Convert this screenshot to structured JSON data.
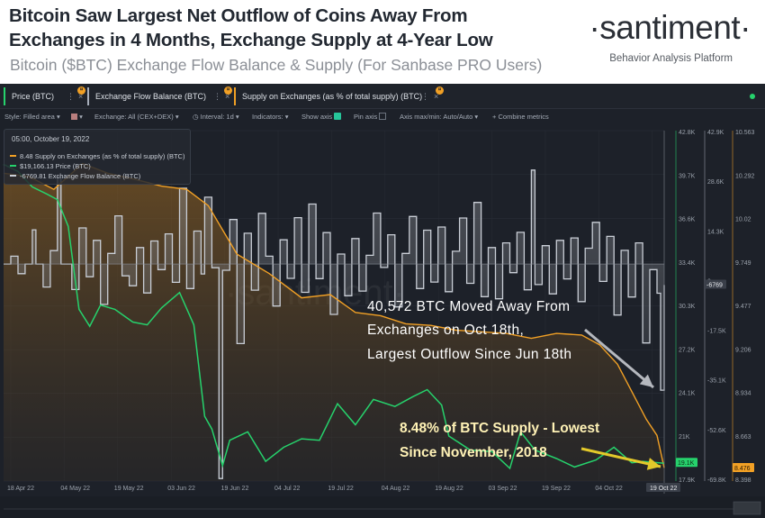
{
  "header": {
    "title_line1": "Bitcoin Saw Largest Net Outflow of Coins Away From",
    "title_line2": "Exchanges in 4 Months, Exchange Supply at 4-Year Low",
    "subtitle": "Bitcoin ($BTC) Exchange Flow Balance & Supply (For Sanbase PRO Users)",
    "logo": "·santiment·",
    "tagline": "Behavior Analysis Platform"
  },
  "tabs": [
    {
      "label": "Price (BTC)",
      "color": "#26d26c",
      "icon": "more-icon",
      "close": "×",
      "badge": "¤"
    },
    {
      "label": "Exchange Flow Balance (BTC)",
      "color": "#a7aebb",
      "icon": "more-icon",
      "close": "×",
      "badge": "¤"
    },
    {
      "label": "Supply on Exchanges (as % of total supply) (BTC)",
      "color": "#f1a025",
      "icon": "more-icon",
      "close": "×",
      "badge": "¤"
    }
  ],
  "toolbar": {
    "style": "Style: Filled area",
    "exchange": "Exchange: All (CEX+DEX)",
    "interval": "Interval: 1d",
    "indicators": "Indicators:",
    "show_axis": "Show axis",
    "pin_axis": "Pin axis",
    "axis_max_min": "Axis max/min: Auto/Auto",
    "combine": "Combine metrics"
  },
  "tooltip": {
    "date": "05:00, October 19, 2022",
    "rows": [
      {
        "value": "8.48",
        "label": "Supply on Exchanges (as % of total supply) (BTC)",
        "color": "#f1a025"
      },
      {
        "value": "$19,166.13",
        "label": "Price (BTC)",
        "color": "#26d26c"
      },
      {
        "value": "-6769.81",
        "label": "Exchange Flow Balance (BTC)",
        "color": "#c9ced6"
      }
    ]
  },
  "annotations": {
    "outflow_l1": "40,572 BTC Moved Away From",
    "outflow_l2": "Exchanges on Oct 18th,",
    "outflow_l3": "Largest Outflow Since Jun 18th",
    "supply_l1": "8.48% of BTC Supply - Lowest",
    "supply_l2": "Since November, 2018"
  },
  "watermark": "·santiment·",
  "chart_data": {
    "type": "line",
    "x_labels": [
      "18 Apr 22",
      "04 May 22",
      "19 May 22",
      "03 Jun 22",
      "19 Jun 22",
      "04 Jul 22",
      "19 Jul 22",
      "04 Aug 22",
      "19 Aug 22",
      "03 Sep 22",
      "19 Sep 22",
      "04 Oct 22",
      "19 Oct 22"
    ],
    "x_start": "2022-04-18",
    "x_end": "2022-10-19",
    "axes": {
      "price": {
        "ticks": [
          "42.8K",
          "39.7K",
          "36.6K",
          "33.4K",
          "30.3K",
          "27.2K",
          "24.1K",
          "21K",
          "17.9K"
        ],
        "min": 17900,
        "max": 42800,
        "current_label": "19.1K",
        "color": "#26d26c"
      },
      "flow": {
        "ticks": [
          "42.9K",
          "28.6K",
          "14.3K",
          "0",
          "-17.5K",
          "-35.1K",
          "-52.6K",
          "-69.8K"
        ],
        "min": -69800,
        "max": 42900,
        "current_label": "-6769",
        "color": "#c9ced6"
      },
      "supply": {
        "ticks": [
          "10.563",
          "10.292",
          "10.02",
          "9.749",
          "9.477",
          "9.206",
          "8.934",
          "8.663",
          "8.398"
        ],
        "min": 8.398,
        "max": 10.563,
        "current_label": "8.476",
        "color": "#f1a025"
      }
    },
    "series": [
      {
        "name": "Price (BTC)",
        "color": "#26d26c",
        "points": [
          [
            "2022-04-18",
            40400
          ],
          [
            "2022-04-22",
            39900
          ],
          [
            "2022-04-26",
            38800
          ],
          [
            "2022-04-30",
            38300
          ],
          [
            "2022-05-03",
            37900
          ],
          [
            "2022-05-06",
            36000
          ],
          [
            "2022-05-09",
            30100
          ],
          [
            "2022-05-12",
            28900
          ],
          [
            "2022-05-15",
            30400
          ],
          [
            "2022-05-19",
            30100
          ],
          [
            "2022-05-24",
            29200
          ],
          [
            "2022-05-28",
            29000
          ],
          [
            "2022-06-01",
            30200
          ],
          [
            "2022-06-06",
            31300
          ],
          [
            "2022-06-10",
            29000
          ],
          [
            "2022-06-13",
            22500
          ],
          [
            "2022-06-15",
            21600
          ],
          [
            "2022-06-18",
            19000
          ],
          [
            "2022-06-20",
            20800
          ],
          [
            "2022-06-25",
            21400
          ],
          [
            "2022-06-30",
            19300
          ],
          [
            "2022-07-05",
            20300
          ],
          [
            "2022-07-10",
            20900
          ],
          [
            "2022-07-15",
            20800
          ],
          [
            "2022-07-20",
            23400
          ],
          [
            "2022-07-25",
            21900
          ],
          [
            "2022-07-30",
            23700
          ],
          [
            "2022-08-05",
            23200
          ],
          [
            "2022-08-10",
            23900
          ],
          [
            "2022-08-14",
            24400
          ],
          [
            "2022-08-18",
            23300
          ],
          [
            "2022-08-20",
            21100
          ],
          [
            "2022-08-26",
            20100
          ],
          [
            "2022-09-01",
            20000
          ],
          [
            "2022-09-06",
            18800
          ],
          [
            "2022-09-09",
            21400
          ],
          [
            "2022-09-13",
            20100
          ],
          [
            "2022-09-19",
            19500
          ],
          [
            "2022-09-24",
            18900
          ],
          [
            "2022-09-30",
            19400
          ],
          [
            "2022-10-05",
            20300
          ],
          [
            "2022-10-10",
            19200
          ],
          [
            "2022-10-13",
            19300
          ],
          [
            "2022-10-19",
            19166
          ]
        ]
      },
      {
        "name": "Supply on Exchanges (as % of total supply) (BTC)",
        "color": "#f1a025",
        "points": [
          [
            "2022-04-18",
            10.3
          ],
          [
            "2022-04-25",
            10.28
          ],
          [
            "2022-05-02",
            10.2
          ],
          [
            "2022-05-10",
            10.36
          ],
          [
            "2022-05-17",
            10.3
          ],
          [
            "2022-05-25",
            10.26
          ],
          [
            "2022-06-01",
            10.22
          ],
          [
            "2022-06-08",
            10.2
          ],
          [
            "2022-06-14",
            10.1
          ],
          [
            "2022-06-18",
            9.95
          ],
          [
            "2022-06-22",
            9.8
          ],
          [
            "2022-07-01",
            9.68
          ],
          [
            "2022-07-10",
            9.53
          ],
          [
            "2022-07-18",
            9.55
          ],
          [
            "2022-07-25",
            9.44
          ],
          [
            "2022-08-01",
            9.42
          ],
          [
            "2022-08-08",
            9.37
          ],
          [
            "2022-08-15",
            9.36
          ],
          [
            "2022-08-22",
            9.33
          ],
          [
            "2022-08-29",
            9.32
          ],
          [
            "2022-09-05",
            9.31
          ],
          [
            "2022-09-12",
            9.28
          ],
          [
            "2022-09-19",
            9.31
          ],
          [
            "2022-09-26",
            9.3
          ],
          [
            "2022-10-01",
            9.24
          ],
          [
            "2022-10-06",
            9.12
          ],
          [
            "2022-10-10",
            8.95
          ],
          [
            "2022-10-14",
            8.78
          ],
          [
            "2022-10-17",
            8.68
          ],
          [
            "2022-10-19",
            8.48
          ]
        ]
      },
      {
        "name": "Exchange Flow Balance (BTC)",
        "color": "#c9ced6",
        "points": [
          [
            "2022-04-18",
            0
          ],
          [
            "2022-04-20",
            2500
          ],
          [
            "2022-04-22",
            -3100
          ],
          [
            "2022-04-24",
            0
          ],
          [
            "2022-04-26",
            11000
          ],
          [
            "2022-04-27",
            0
          ],
          [
            "2022-04-29",
            -7400
          ],
          [
            "2022-05-01",
            4300
          ],
          [
            "2022-05-03",
            28000
          ],
          [
            "2022-05-04",
            0
          ],
          [
            "2022-05-07",
            -8200
          ],
          [
            "2022-05-09",
            11600
          ],
          [
            "2022-05-11",
            -4100
          ],
          [
            "2022-05-13",
            7600
          ],
          [
            "2022-05-15",
            -13000
          ],
          [
            "2022-05-17",
            3400
          ],
          [
            "2022-05-19",
            15500
          ],
          [
            "2022-05-21",
            -3800
          ],
          [
            "2022-05-23",
            -7000
          ],
          [
            "2022-05-25",
            5300
          ],
          [
            "2022-05-27",
            -9300
          ],
          [
            "2022-05-29",
            7400
          ],
          [
            "2022-05-31",
            -1800
          ],
          [
            "2022-06-02",
            9700
          ],
          [
            "2022-06-04",
            -5900
          ],
          [
            "2022-06-06",
            24400
          ],
          [
            "2022-06-08",
            -7900
          ],
          [
            "2022-06-10",
            10600
          ],
          [
            "2022-06-12",
            -3200
          ],
          [
            "2022-06-13",
            21500
          ],
          [
            "2022-06-15",
            -1200
          ],
          [
            "2022-06-17",
            -69000
          ],
          [
            "2022-06-18",
            -2000
          ],
          [
            "2022-06-20",
            14300
          ],
          [
            "2022-06-22",
            -25600
          ],
          [
            "2022-06-24",
            9900
          ],
          [
            "2022-06-26",
            -8400
          ],
          [
            "2022-06-28",
            16300
          ],
          [
            "2022-06-30",
            2500
          ],
          [
            "2022-07-02",
            -13500
          ],
          [
            "2022-07-04",
            7800
          ],
          [
            "2022-07-06",
            -4600
          ],
          [
            "2022-07-08",
            14900
          ],
          [
            "2022-07-10",
            -9100
          ],
          [
            "2022-07-12",
            19300
          ],
          [
            "2022-07-14",
            -4700
          ],
          [
            "2022-07-16",
            10100
          ],
          [
            "2022-07-18",
            -16200
          ],
          [
            "2022-07-20",
            3200
          ],
          [
            "2022-07-22",
            -10200
          ],
          [
            "2022-07-24",
            8200
          ],
          [
            "2022-07-26",
            -8700
          ],
          [
            "2022-07-28",
            2800
          ],
          [
            "2022-07-30",
            16400
          ],
          [
            "2022-08-01",
            -1100
          ],
          [
            "2022-08-03",
            9400
          ],
          [
            "2022-08-05",
            -13800
          ],
          [
            "2022-08-07",
            3400
          ],
          [
            "2022-08-09",
            15300
          ],
          [
            "2022-08-11",
            -7900
          ],
          [
            "2022-08-13",
            10900
          ],
          [
            "2022-08-15",
            -5800
          ],
          [
            "2022-08-17",
            11900
          ],
          [
            "2022-08-19",
            -8900
          ],
          [
            "2022-08-21",
            4100
          ],
          [
            "2022-08-23",
            14800
          ],
          [
            "2022-08-25",
            -6200
          ],
          [
            "2022-08-27",
            19800
          ],
          [
            "2022-08-29",
            -10500
          ],
          [
            "2022-08-31",
            5300
          ],
          [
            "2022-09-02",
            -11200
          ],
          [
            "2022-09-04",
            6800
          ],
          [
            "2022-09-06",
            -2800
          ],
          [
            "2022-09-08",
            10200
          ],
          [
            "2022-09-10",
            -8300
          ],
          [
            "2022-09-12",
            30200
          ],
          [
            "2022-09-13",
            -6600
          ],
          [
            "2022-09-15",
            5900
          ],
          [
            "2022-09-17",
            -9600
          ],
          [
            "2022-09-19",
            7600
          ],
          [
            "2022-09-21",
            -4800
          ],
          [
            "2022-09-23",
            8400
          ],
          [
            "2022-09-25",
            -12100
          ],
          [
            "2022-09-27",
            5100
          ],
          [
            "2022-09-29",
            13400
          ],
          [
            "2022-10-01",
            -5600
          ],
          [
            "2022-10-03",
            8900
          ],
          [
            "2022-10-05",
            -16400
          ],
          [
            "2022-10-07",
            4400
          ],
          [
            "2022-10-09",
            -10600
          ],
          [
            "2022-10-11",
            6800
          ],
          [
            "2022-10-13",
            -25400
          ],
          [
            "2022-10-15",
            -1800
          ],
          [
            "2022-10-17",
            -9400
          ],
          [
            "2022-10-18",
            -40572
          ],
          [
            "2022-10-19",
            -6770
          ]
        ]
      }
    ]
  }
}
